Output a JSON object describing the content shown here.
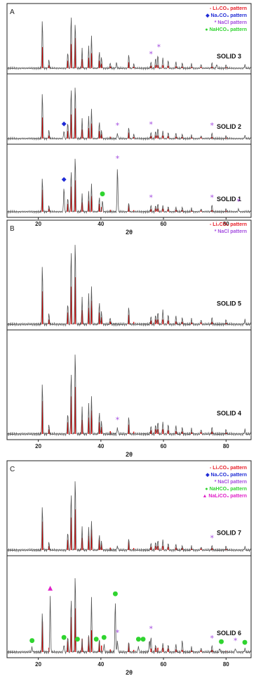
{
  "chart_data": [
    {
      "panel": "A",
      "type": "line",
      "xlabel": "2θ",
      "xlim": [
        10,
        88
      ],
      "xticks": [
        20,
        40,
        60,
        80
      ],
      "legend": [
        {
          "marker": "-",
          "label": "Li₂CO₃ pattern",
          "color": "#e8202a"
        },
        {
          "marker": "◆",
          "label": "Na₂CO₃ pattern",
          "color": "#1f2bd6"
        },
        {
          "marker": "*",
          "label": "NaCl pattern",
          "color": "#a44de0"
        },
        {
          "marker": "●",
          "label": "NaHCO₃ pattern",
          "color": "#2fd42f"
        }
      ],
      "series": [
        {
          "name": "SOLID 3",
          "peaks": [
            [
              21.3,
              0.9
            ],
            [
              23.4,
              0.15
            ],
            [
              29.4,
              0.3
            ],
            [
              30.5,
              1.0
            ],
            [
              31.8,
              0.85
            ],
            [
              34.0,
              0.35
            ],
            [
              36.1,
              0.4
            ],
            [
              37.0,
              0.6
            ],
            [
              39.5,
              0.3
            ],
            [
              40.2,
              0.2
            ],
            [
              43.0,
              0.1
            ],
            [
              45.0,
              0.1
            ],
            [
              48.9,
              0.25
            ],
            [
              50.5,
              0.08
            ],
            [
              56.0,
              0.12
            ],
            [
              57.5,
              0.2
            ],
            [
              58.2,
              0.25
            ],
            [
              59.8,
              0.2
            ],
            [
              61.5,
              0.15
            ],
            [
              64.0,
              0.12
            ],
            [
              66.0,
              0.1
            ],
            [
              69.0,
              0.08
            ],
            [
              72.0,
              0.08
            ],
            [
              75.5,
              0.1
            ],
            [
              77.0,
              0.08
            ],
            [
              80.0,
              0.06
            ],
            [
              86.0,
              0.06
            ]
          ],
          "markers": [
            {
              "x": 56.0,
              "symbol": "*",
              "color": "#a44de0"
            },
            {
              "x": 58.5,
              "symbol": "*",
              "color": "#a44de0"
            }
          ]
        },
        {
          "name": "SOLID 2",
          "peaks": [
            [
              21.3,
              0.85
            ],
            [
              23.4,
              0.15
            ],
            [
              28.2,
              0.15
            ],
            [
              29.4,
              0.3
            ],
            [
              30.5,
              0.95
            ],
            [
              31.8,
              1.0
            ],
            [
              34.0,
              0.35
            ],
            [
              36.1,
              0.4
            ],
            [
              37.0,
              0.55
            ],
            [
              39.5,
              0.3
            ],
            [
              40.2,
              0.15
            ],
            [
              45.3,
              0.1
            ],
            [
              48.9,
              0.2
            ],
            [
              50.5,
              0.08
            ],
            [
              56.0,
              0.12
            ],
            [
              57.5,
              0.15
            ],
            [
              58.2,
              0.2
            ],
            [
              59.8,
              0.15
            ],
            [
              61.5,
              0.12
            ],
            [
              64.0,
              0.1
            ],
            [
              66.0,
              0.08
            ],
            [
              69.0,
              0.06
            ],
            [
              72.0,
              0.06
            ],
            [
              75.5,
              0.1
            ],
            [
              80.0,
              0.05
            ],
            [
              86.0,
              0.05
            ]
          ],
          "markers": [
            {
              "x": 28.2,
              "symbol": "◆",
              "color": "#1f2bd6"
            },
            {
              "x": 45.3,
              "symbol": "*",
              "color": "#a44de0"
            },
            {
              "x": 56.0,
              "symbol": "*",
              "color": "#a44de0"
            },
            {
              "x": 75.5,
              "symbol": "*",
              "color": "#a44de0"
            }
          ]
        },
        {
          "name": "SOLID 1",
          "peaks": [
            [
              21.3,
              0.6
            ],
            [
              23.4,
              0.1
            ],
            [
              28.2,
              0.45
            ],
            [
              29.4,
              0.25
            ],
            [
              30.5,
              0.75
            ],
            [
              31.8,
              1.0
            ],
            [
              34.0,
              0.3
            ],
            [
              36.1,
              0.35
            ],
            [
              37.0,
              0.5
            ],
            [
              39.5,
              0.25
            ],
            [
              40.5,
              0.2
            ],
            [
              45.3,
              0.8
            ],
            [
              48.9,
              0.15
            ],
            [
              56.0,
              0.12
            ],
            [
              57.5,
              0.12
            ],
            [
              58.2,
              0.15
            ],
            [
              59.8,
              0.12
            ],
            [
              61.5,
              0.1
            ],
            [
              64.0,
              0.08
            ],
            [
              66.0,
              0.08
            ],
            [
              69.0,
              0.06
            ],
            [
              72.0,
              0.06
            ],
            [
              75.5,
              0.12
            ],
            [
              80.0,
              0.05
            ],
            [
              84.0,
              0.05
            ]
          ],
          "markers": [
            {
              "x": 28.2,
              "symbol": "◆",
              "color": "#1f2bd6"
            },
            {
              "x": 40.5,
              "symbol": "●",
              "color": "#2fd42f"
            },
            {
              "x": 45.3,
              "symbol": "*",
              "color": "#a44de0"
            },
            {
              "x": 56.0,
              "symbol": "*",
              "color": "#a44de0"
            },
            {
              "x": 75.5,
              "symbol": "*",
              "color": "#a44de0"
            },
            {
              "x": 84.0,
              "symbol": "*",
              "color": "#a44de0"
            }
          ]
        }
      ]
    },
    {
      "panel": "B",
      "type": "line",
      "xlabel": "2θ",
      "xlim": [
        10,
        88
      ],
      "xticks": [
        20,
        40,
        60,
        80
      ],
      "legend": [
        {
          "marker": "-",
          "label": "Li₂CO₃ pattern",
          "color": "#e8202a"
        },
        {
          "marker": "*",
          "label": "NaCl pattern",
          "color": "#a44de0"
        }
      ],
      "series": [
        {
          "name": "SOLID 5",
          "peaks": [
            [
              21.3,
              0.7
            ],
            [
              23.4,
              0.12
            ],
            [
              29.4,
              0.25
            ],
            [
              30.5,
              0.9
            ],
            [
              31.8,
              1.0
            ],
            [
              34.0,
              0.3
            ],
            [
              36.1,
              0.35
            ],
            [
              37.0,
              0.45
            ],
            [
              39.5,
              0.25
            ],
            [
              40.2,
              0.15
            ],
            [
              43.0,
              0.08
            ],
            [
              48.9,
              0.2
            ],
            [
              56.0,
              0.1
            ],
            [
              57.5,
              0.12
            ],
            [
              58.2,
              0.15
            ],
            [
              59.8,
              0.18
            ],
            [
              61.5,
              0.12
            ],
            [
              64.0,
              0.1
            ],
            [
              66.0,
              0.08
            ],
            [
              69.0,
              0.06
            ],
            [
              72.0,
              0.06
            ],
            [
              75.5,
              0.08
            ],
            [
              80.0,
              0.05
            ],
            [
              86.0,
              0.05
            ]
          ],
          "markers": []
        },
        {
          "name": "SOLID 4",
          "peaks": [
            [
              21.3,
              0.6
            ],
            [
              23.4,
              0.1
            ],
            [
              29.4,
              0.25
            ],
            [
              30.5,
              0.75
            ],
            [
              31.8,
              1.0
            ],
            [
              34.0,
              0.3
            ],
            [
              36.1,
              0.35
            ],
            [
              37.0,
              0.45
            ],
            [
              39.5,
              0.25
            ],
            [
              40.2,
              0.15
            ],
            [
              45.3,
              0.08
            ],
            [
              48.9,
              0.2
            ],
            [
              56.0,
              0.1
            ],
            [
              57.5,
              0.12
            ],
            [
              58.2,
              0.15
            ],
            [
              59.8,
              0.15
            ],
            [
              61.5,
              0.12
            ],
            [
              64.0,
              0.1
            ],
            [
              66.0,
              0.08
            ],
            [
              69.0,
              0.06
            ],
            [
              72.0,
              0.06
            ],
            [
              75.5,
              0.08
            ],
            [
              80.0,
              0.05
            ],
            [
              86.0,
              0.05
            ]
          ],
          "markers": [
            {
              "x": 45.3,
              "symbol": "*",
              "color": "#a44de0"
            }
          ]
        }
      ]
    },
    {
      "panel": "C",
      "type": "line",
      "xlabel": "2θ",
      "xlim": [
        10,
        88
      ],
      "xticks": [
        20,
        40,
        60,
        80
      ],
      "legend": [
        {
          "marker": "-",
          "label": "Li₂CO₃ pattern",
          "color": "#e8202a"
        },
        {
          "marker": "◆",
          "label": "Na₂CO₃ pattern",
          "color": "#1f2bd6"
        },
        {
          "marker": "*",
          "label": "NaCl pattern",
          "color": "#a44de0"
        },
        {
          "marker": "●",
          "label": "NaHCO₃ pattern",
          "color": "#2fd42f"
        },
        {
          "marker": "▲",
          "label": "NaLiCO₃ pattern",
          "color": "#e020c8"
        }
      ],
      "series": [
        {
          "name": "SOLID 7",
          "peaks": [
            [
              21.3,
              0.6
            ],
            [
              23.4,
              0.1
            ],
            [
              29.4,
              0.25
            ],
            [
              30.5,
              0.8
            ],
            [
              31.8,
              1.0
            ],
            [
              34.0,
              0.3
            ],
            [
              36.1,
              0.3
            ],
            [
              37.0,
              0.4
            ],
            [
              39.5,
              0.2
            ],
            [
              40.2,
              0.12
            ],
            [
              45.3,
              0.06
            ],
            [
              48.9,
              0.15
            ],
            [
              56.0,
              0.1
            ],
            [
              57.5,
              0.12
            ],
            [
              58.2,
              0.14
            ],
            [
              59.8,
              0.15
            ],
            [
              61.5,
              0.1
            ],
            [
              64.0,
              0.08
            ],
            [
              66.0,
              0.06
            ],
            [
              69.0,
              0.05
            ],
            [
              72.0,
              0.05
            ],
            [
              75.5,
              0.06
            ],
            [
              80.0,
              0.05
            ],
            [
              86.0,
              0.04
            ]
          ],
          "markers": [
            {
              "x": 75.5,
              "symbol": "*",
              "color": "#a44de0"
            }
          ]
        },
        {
          "name": "SOLID 6",
          "peaks": [
            [
              18.0,
              0.06
            ],
            [
              21.3,
              0.5
            ],
            [
              23.8,
              0.72
            ],
            [
              28.2,
              0.1
            ],
            [
              29.4,
              0.2
            ],
            [
              30.5,
              0.7
            ],
            [
              31.8,
              1.0
            ],
            [
              34.0,
              0.15
            ],
            [
              36.1,
              0.2
            ],
            [
              37.0,
              0.7
            ],
            [
              39.5,
              0.15
            ],
            [
              41.0,
              0.1
            ],
            [
              44.6,
              0.65
            ],
            [
              45.3,
              0.15
            ],
            [
              48.9,
              0.12
            ],
            [
              52.0,
              0.08
            ],
            [
              55.5,
              0.15
            ],
            [
              56.0,
              0.2
            ],
            [
              57.5,
              0.1
            ],
            [
              59.8,
              0.12
            ],
            [
              61.5,
              0.1
            ],
            [
              64.0,
              0.1
            ],
            [
              66.0,
              0.15
            ],
            [
              69.0,
              0.06
            ],
            [
              72.0,
              0.06
            ],
            [
              75.5,
              0.08
            ],
            [
              78.0,
              0.05
            ],
            [
              83.0,
              0.05
            ],
            [
              86.0,
              0.04
            ]
          ],
          "markers": [
            {
              "x": 18.0,
              "symbol": "●",
              "color": "#2fd42f"
            },
            {
              "x": 23.8,
              "symbol": "▲",
              "color": "#e020c8"
            },
            {
              "x": 28.2,
              "symbol": "●",
              "color": "#2fd42f"
            },
            {
              "x": 32.5,
              "symbol": "●",
              "color": "#2fd42f"
            },
            {
              "x": 38.5,
              "symbol": "●",
              "color": "#2fd42f"
            },
            {
              "x": 41.0,
              "symbol": "●",
              "color": "#2fd42f"
            },
            {
              "x": 44.6,
              "symbol": "●",
              "color": "#2fd42f"
            },
            {
              "x": 45.3,
              "symbol": "*",
              "color": "#a44de0"
            },
            {
              "x": 52.0,
              "symbol": "●",
              "color": "#2fd42f"
            },
            {
              "x": 53.5,
              "symbol": "●",
              "color": "#2fd42f"
            },
            {
              "x": 56.0,
              "symbol": "*",
              "color": "#a44de0"
            },
            {
              "x": 75.5,
              "symbol": "*",
              "color": "#a44de0"
            },
            {
              "x": 78.5,
              "symbol": "●",
              "color": "#2fd42f"
            },
            {
              "x": 83.0,
              "symbol": "*",
              "color": "#a44de0"
            },
            {
              "x": 86.0,
              "symbol": "●",
              "color": "#2fd42f"
            }
          ]
        }
      ]
    }
  ],
  "li2co3_reference_peaks": [
    [
      21.3,
      0.7
    ],
    [
      23.4,
      0.1
    ],
    [
      29.4,
      0.25
    ],
    [
      30.5,
      0.8
    ],
    [
      31.8,
      1.0
    ],
    [
      34.0,
      0.3
    ],
    [
      36.1,
      0.35
    ],
    [
      37.0,
      0.5
    ],
    [
      39.5,
      0.25
    ],
    [
      40.2,
      0.15
    ],
    [
      43.0,
      0.06
    ],
    [
      48.9,
      0.2
    ],
    [
      50.5,
      0.05
    ],
    [
      56.0,
      0.08
    ],
    [
      57.5,
      0.1
    ],
    [
      58.2,
      0.1
    ],
    [
      59.8,
      0.1
    ],
    [
      61.5,
      0.08
    ],
    [
      64.0,
      0.06
    ],
    [
      66.0,
      0.05
    ],
    [
      69.0,
      0.04
    ],
    [
      72.0,
      0.04
    ],
    [
      75.5,
      0.05
    ],
    [
      80.0,
      0.03
    ]
  ]
}
